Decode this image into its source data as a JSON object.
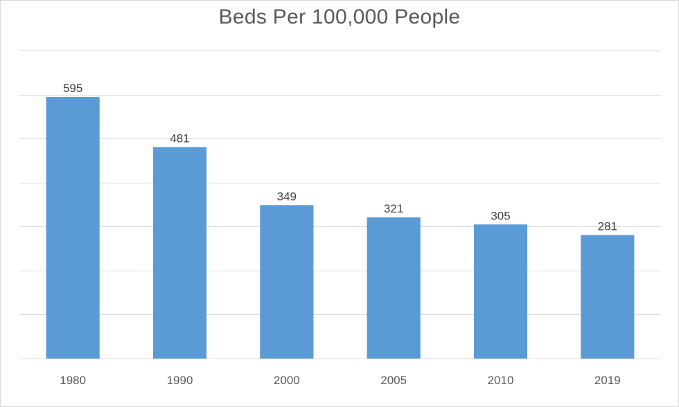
{
  "chart_data": {
    "type": "bar",
    "title": "Beds Per 100,000 People",
    "categories": [
      "1980",
      "1990",
      "2000",
      "2005",
      "2010",
      "2019"
    ],
    "values": [
      595,
      481,
      349,
      321,
      305,
      281
    ],
    "xlabel": "",
    "ylabel": "",
    "ylim": [
      0,
      700
    ],
    "grid": true,
    "bar_color": "#5b9bd5",
    "gridline_color": "#d9d9d9"
  }
}
